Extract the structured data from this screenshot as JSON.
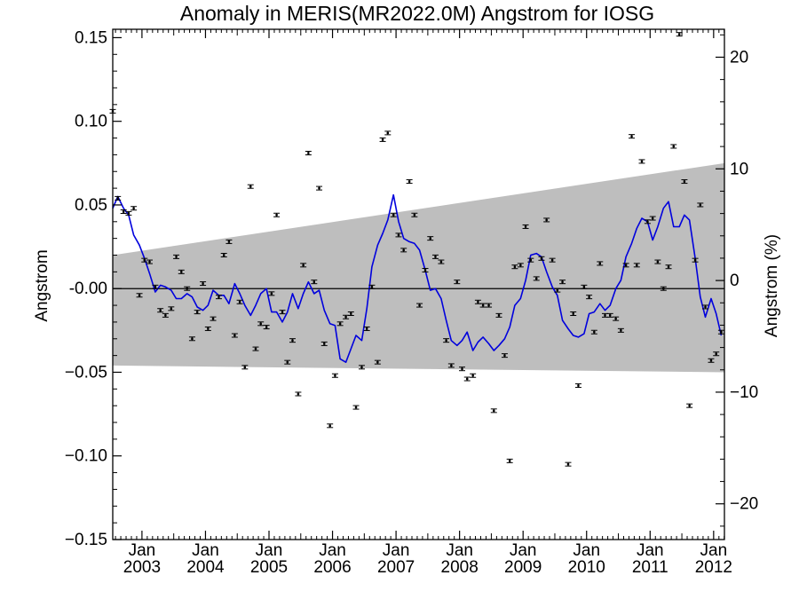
{
  "chart_data": {
    "type": "line",
    "title": "Anomaly in MERIS(MR2022.0M) Angstrom for IOSG",
    "ylabel": "Angstrom",
    "ylabel_right": "Angstrom (%)",
    "xlim": [
      2002.54,
      2012.17
    ],
    "ylim": [
      -0.15,
      0.155
    ],
    "ylim_right": [
      -23.2,
      22.5
    ],
    "x_ticks": [
      {
        "x": 2003.0,
        "top": "Jan",
        "bottom": "2003"
      },
      {
        "x": 2004.0,
        "top": "Jan",
        "bottom": "2004"
      },
      {
        "x": 2005.0,
        "top": "Jan",
        "bottom": "2005"
      },
      {
        "x": 2006.0,
        "top": "Jan",
        "bottom": "2006"
      },
      {
        "x": 2007.0,
        "top": "Jan",
        "bottom": "2007"
      },
      {
        "x": 2008.0,
        "top": "Jan",
        "bottom": "2008"
      },
      {
        "x": 2009.0,
        "top": "Jan",
        "bottom": "2009"
      },
      {
        "x": 2010.0,
        "top": "Jan",
        "bottom": "2010"
      },
      {
        "x": 2011.0,
        "top": "Jan",
        "bottom": "2011"
      },
      {
        "x": 2012.0,
        "top": "Jan",
        "bottom": "2012"
      }
    ],
    "y_ticks": [
      {
        "v": 0.15,
        "label": "0.15"
      },
      {
        "v": 0.1,
        "label": "0.10"
      },
      {
        "v": 0.05,
        "label": "0.05"
      },
      {
        "v": 0.0,
        "label": "-0.00"
      },
      {
        "v": -0.05,
        "label": "−0.05"
      },
      {
        "v": -0.1,
        "label": "−0.10"
      },
      {
        "v": -0.15,
        "label": "−0.15"
      }
    ],
    "y_ticks_right": [
      {
        "v": 20,
        "label": "20"
      },
      {
        "v": 10,
        "label": "10"
      },
      {
        "v": 0,
        "label": "0"
      },
      {
        "v": -10,
        "label": "−10"
      },
      {
        "v": -20,
        "label": "−20"
      }
    ],
    "band": {
      "x": [
        2002.54,
        2012.17
      ],
      "upper": [
        0.02,
        0.075
      ],
      "lower": [
        -0.046,
        -0.05
      ]
    },
    "colors": {
      "band": "#bebebe",
      "line": "#0000dd",
      "points": "#000000",
      "zero_line": "#000000"
    },
    "series": [
      {
        "kind": "monthly_points",
        "x": [
          2002.54,
          2002.62,
          2002.71,
          2002.79,
          2002.87,
          2002.96,
          2003.04,
          2003.12,
          2003.21,
          2003.29,
          2003.37,
          2003.46,
          2003.54,
          2003.62,
          2003.71,
          2003.79,
          2003.87,
          2003.96,
          2004.04,
          2004.12,
          2004.21,
          2004.29,
          2004.37,
          2004.46,
          2004.54,
          2004.62,
          2004.71,
          2004.79,
          2004.87,
          2004.96,
          2005.04,
          2005.12,
          2005.21,
          2005.29,
          2005.37,
          2005.46,
          2005.54,
          2005.62,
          2005.71,
          2005.79,
          2005.87,
          2005.96,
          2006.04,
          2006.12,
          2006.21,
          2006.29,
          2006.37,
          2006.46,
          2006.54,
          2006.62,
          2006.71,
          2006.79,
          2006.87,
          2006.96,
          2007.04,
          2007.12,
          2007.21,
          2007.29,
          2007.37,
          2007.46,
          2007.54,
          2007.62,
          2007.71,
          2007.79,
          2007.87,
          2007.96,
          2008.04,
          2008.12,
          2008.21,
          2008.29,
          2008.37,
          2008.46,
          2008.54,
          2008.62,
          2008.71,
          2008.79,
          2008.87,
          2008.96,
          2009.04,
          2009.12,
          2009.21,
          2009.29,
          2009.37,
          2009.46,
          2009.54,
          2009.62,
          2009.71,
          2009.79,
          2009.87,
          2009.96,
          2010.04,
          2010.12,
          2010.21,
          2010.29,
          2010.37,
          2010.46,
          2010.54,
          2010.62,
          2010.71,
          2010.79,
          2010.87,
          2010.96,
          2011.04,
          2011.12,
          2011.21,
          2011.29,
          2011.37,
          2011.46,
          2011.54,
          2011.62,
          2011.71,
          2011.79,
          2011.87,
          2011.96,
          2012.04,
          2012.12
        ],
        "y": [
          0.106,
          0.054,
          0.046,
          0.045,
          0.048,
          -0.004,
          0.017,
          0.016,
          0.001,
          -0.013,
          -0.016,
          -0.012,
          0.019,
          0.01,
          0.0,
          -0.03,
          -0.014,
          0.003,
          -0.024,
          -0.018,
          -0.005,
          0.02,
          0.028,
          -0.028,
          -0.008,
          -0.047,
          0.061,
          -0.036,
          -0.021,
          -0.023,
          -0.003,
          0.044,
          -0.014,
          -0.044,
          -0.031,
          -0.063,
          0.014,
          0.081,
          0.004,
          0.06,
          -0.033,
          -0.082,
          -0.052,
          -0.021,
          -0.017,
          -0.015,
          -0.071,
          -0.047,
          -0.024,
          0.001,
          -0.044,
          0.089,
          0.093,
          0.044,
          0.032,
          0.023,
          0.064,
          0.044,
          -0.01,
          0.011,
          0.03,
          0.019,
          0.016,
          -0.031,
          -0.046,
          0.004,
          -0.048,
          -0.054,
          -0.052,
          -0.008,
          -0.01,
          -0.01,
          -0.073,
          -0.016,
          -0.04,
          -0.103,
          0.013,
          0.014,
          0.037,
          0.017,
          0.006,
          0.018,
          0.041,
          0.017,
          -0.001,
          0.004,
          -0.105,
          -0.015,
          -0.058,
          0.001,
          -0.005,
          -0.026,
          0.015,
          -0.016,
          -0.016,
          -0.018,
          -0.025,
          0.014,
          0.091,
          0.014,
          0.076,
          0.04,
          0.042,
          0.016,
          0.0,
          0.013,
          0.085,
          0.152,
          0.064,
          -0.07,
          0.017,
          0.05,
          -0.011,
          -0.043,
          -0.039,
          -0.026
        ]
      },
      {
        "kind": "smoothed",
        "x": [
          2002.54,
          2002.62,
          2002.71,
          2002.79,
          2002.87,
          2002.96,
          2003.04,
          2003.12,
          2003.21,
          2003.29,
          2003.37,
          2003.46,
          2003.54,
          2003.62,
          2003.71,
          2003.79,
          2003.87,
          2003.96,
          2004.04,
          2004.12,
          2004.21,
          2004.29,
          2004.37,
          2004.46,
          2004.54,
          2004.62,
          2004.71,
          2004.79,
          2004.87,
          2004.96,
          2005.04,
          2005.12,
          2005.21,
          2005.29,
          2005.37,
          2005.46,
          2005.54,
          2005.62,
          2005.71,
          2005.79,
          2005.87,
          2005.96,
          2006.04,
          2006.12,
          2006.21,
          2006.29,
          2006.37,
          2006.46,
          2006.54,
          2006.62,
          2006.71,
          2006.79,
          2006.87,
          2006.96,
          2007.04,
          2007.12,
          2007.21,
          2007.29,
          2007.37,
          2007.46,
          2007.54,
          2007.62,
          2007.71,
          2007.79,
          2007.87,
          2007.96,
          2008.04,
          2008.12,
          2008.21,
          2008.29,
          2008.37,
          2008.46,
          2008.54,
          2008.62,
          2008.71,
          2008.79,
          2008.87,
          2008.96,
          2009.04,
          2009.12,
          2009.21,
          2009.29,
          2009.37,
          2009.46,
          2009.54,
          2009.62,
          2009.71,
          2009.79,
          2009.87,
          2009.96,
          2010.04,
          2010.12,
          2010.21,
          2010.29,
          2010.37,
          2010.46,
          2010.54,
          2010.62,
          2010.71,
          2010.79,
          2010.87,
          2010.96,
          2011.04,
          2011.12,
          2011.21,
          2011.29,
          2011.37,
          2011.46,
          2011.54,
          2011.62,
          2011.71,
          2011.79,
          2011.87,
          2011.96,
          2012.04,
          2012.12
        ],
        "y": [
          0.048,
          0.055,
          0.048,
          0.044,
          0.032,
          0.026,
          0.018,
          0.009,
          -0.002,
          0.002,
          0.001,
          -0.001,
          -0.006,
          -0.006,
          -0.003,
          -0.005,
          -0.011,
          -0.013,
          -0.01,
          -0.001,
          -0.004,
          -0.004,
          -0.009,
          0.003,
          -0.003,
          -0.01,
          -0.016,
          -0.01,
          -0.003,
          0.0,
          -0.014,
          -0.014,
          -0.02,
          -0.014,
          -0.003,
          -0.012,
          -0.003,
          0.004,
          -0.003,
          -0.001,
          -0.013,
          -0.021,
          -0.022,
          -0.042,
          -0.044,
          -0.036,
          -0.028,
          -0.031,
          -0.012,
          0.013,
          0.026,
          0.033,
          0.041,
          0.056,
          0.04,
          0.03,
          0.028,
          0.027,
          0.023,
          0.011,
          -0.001,
          0.0,
          -0.006,
          -0.019,
          -0.031,
          -0.034,
          -0.031,
          -0.026,
          -0.037,
          -0.032,
          -0.029,
          -0.033,
          -0.037,
          -0.034,
          -0.03,
          -0.023,
          -0.01,
          -0.006,
          0.005,
          0.02,
          0.021,
          0.019,
          0.01,
          0.001,
          -0.004,
          -0.019,
          -0.024,
          -0.028,
          -0.029,
          -0.027,
          -0.015,
          -0.014,
          -0.009,
          -0.013,
          -0.01,
          0.0,
          0.005,
          0.019,
          0.027,
          0.036,
          0.042,
          0.04,
          0.029,
          0.037,
          0.048,
          0.052,
          0.037,
          0.037,
          0.044,
          0.041,
          0.018,
          -0.005,
          -0.017,
          -0.006,
          -0.015,
          -0.028
        ]
      }
    ]
  }
}
